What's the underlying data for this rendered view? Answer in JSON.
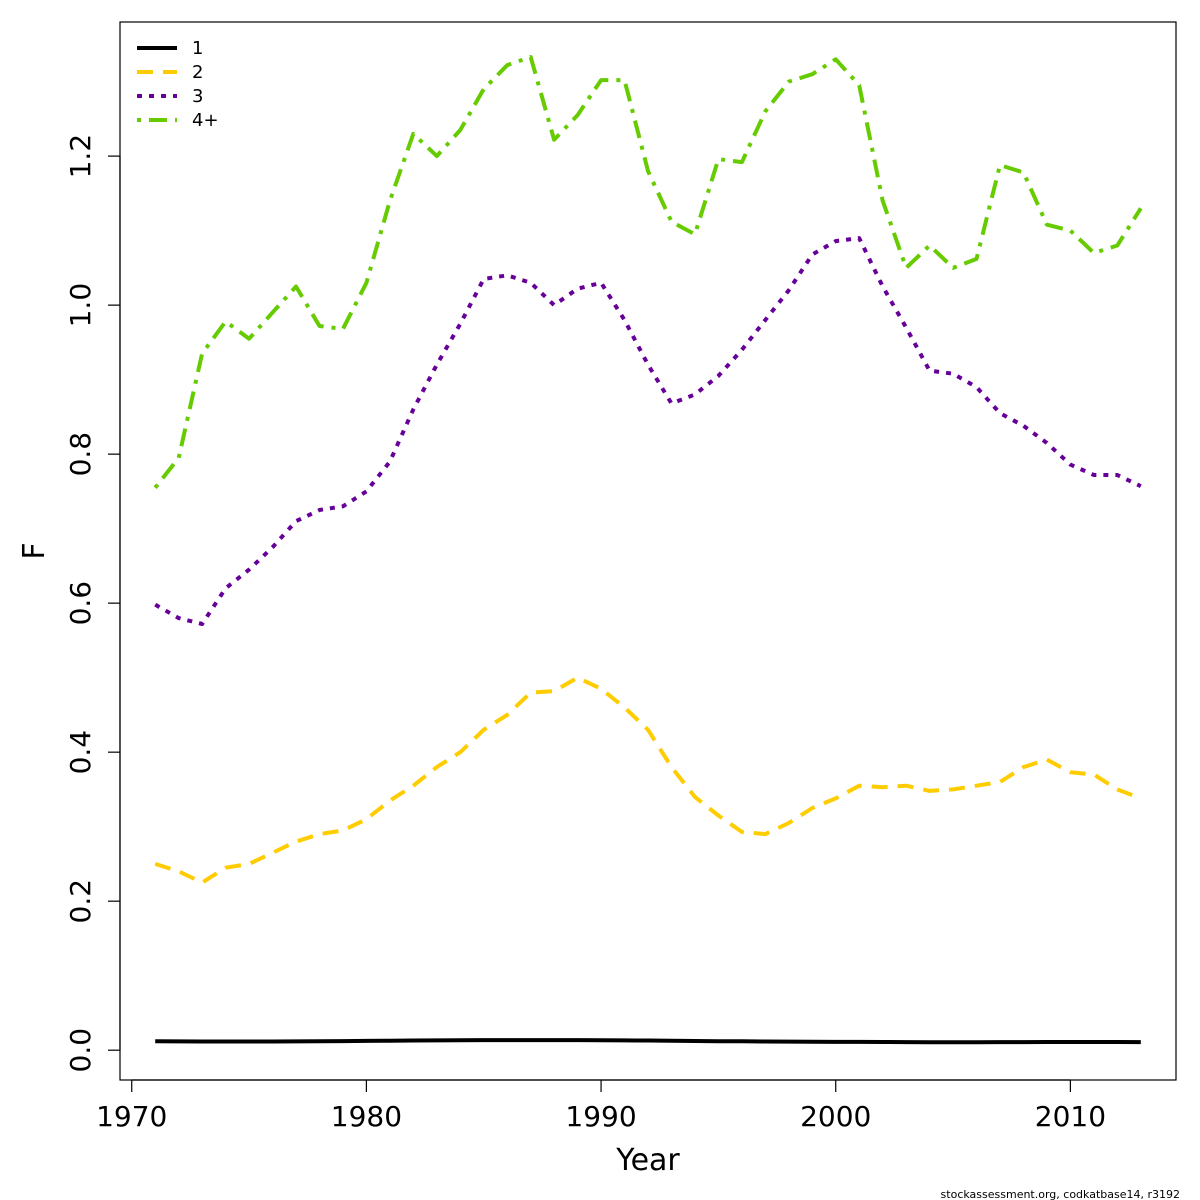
{
  "chart_data": {
    "type": "line",
    "xlabel": "Year",
    "ylabel": "F",
    "xlim": [
      1969.5,
      2014.5
    ],
    "ylim": [
      -0.04,
      1.38
    ],
    "x_ticks": [
      1970,
      1980,
      1990,
      2000,
      2010
    ],
    "y_ticks": [
      0.0,
      0.2,
      0.4,
      0.6,
      0.8,
      1.0,
      1.2
    ],
    "x_tick_labels": [
      "1970",
      "1980",
      "1990",
      "2000",
      "2010"
    ],
    "y_tick_labels": [
      "0.0",
      "0.2",
      "0.4",
      "0.6",
      "0.8",
      "1.0",
      "1.2"
    ],
    "grid": false,
    "legend_position": "top-left",
    "x": [
      1971,
      1972,
      1973,
      1974,
      1975,
      1976,
      1977,
      1978,
      1979,
      1980,
      1981,
      1982,
      1983,
      1984,
      1985,
      1986,
      1987,
      1988,
      1989,
      1990,
      1991,
      1992,
      1993,
      1994,
      1995,
      1996,
      1997,
      1998,
      1999,
      2000,
      2001,
      2002,
      2003,
      2004,
      2005,
      2006,
      2007,
      2008,
      2009,
      2010,
      2011,
      2012,
      2013
    ],
    "series": [
      {
        "name": "1",
        "color": "#000000",
        "dash": "solid",
        "values": [
          0.012,
          0.0118,
          0.0117,
          0.0117,
          0.0117,
          0.0117,
          0.0118,
          0.012,
          0.0122,
          0.0125,
          0.0128,
          0.013,
          0.0132,
          0.0134,
          0.0135,
          0.0136,
          0.0136,
          0.0136,
          0.0135,
          0.0134,
          0.0132,
          0.013,
          0.0127,
          0.0124,
          0.0121,
          0.0119,
          0.0117,
          0.0115,
          0.0113,
          0.0112,
          0.0111,
          0.011,
          0.0109,
          0.0108,
          0.0108,
          0.0108,
          0.0109,
          0.0109,
          0.011,
          0.011,
          0.011,
          0.011,
          0.0109
        ]
      },
      {
        "name": "2",
        "color": "#FFCC00",
        "dash": "dashed",
        "values": [
          0.25,
          0.24,
          0.225,
          0.245,
          0.25,
          0.265,
          0.28,
          0.29,
          0.295,
          0.31,
          0.335,
          0.355,
          0.38,
          0.4,
          0.43,
          0.45,
          0.48,
          0.482,
          0.5,
          0.485,
          0.46,
          0.43,
          0.38,
          0.34,
          0.315,
          0.293,
          0.29,
          0.305,
          0.325,
          0.338,
          0.355,
          0.353,
          0.355,
          0.348,
          0.35,
          0.355,
          0.36,
          0.38,
          0.39,
          0.373,
          0.37,
          0.35,
          0.338
        ]
      },
      {
        "name": "3",
        "color": "#660099",
        "dash": "dotted",
        "values": [
          0.598,
          0.58,
          0.572,
          0.62,
          0.645,
          0.675,
          0.71,
          0.725,
          0.73,
          0.75,
          0.79,
          0.86,
          0.92,
          0.975,
          1.035,
          1.04,
          1.03,
          1.0,
          1.022,
          1.03,
          0.98,
          0.92,
          0.868,
          0.88,
          0.905,
          0.94,
          0.98,
          1.02,
          1.068,
          1.086,
          1.09,
          1.025,
          0.97,
          0.912,
          0.908,
          0.89,
          0.855,
          0.838,
          0.815,
          0.786,
          0.772,
          0.772,
          0.757
        ]
      },
      {
        "name": "4+",
        "color": "#66CC00",
        "dash": "dashdot",
        "values": [
          0.755,
          0.795,
          0.935,
          0.978,
          0.955,
          0.99,
          1.025,
          0.972,
          0.968,
          1.03,
          1.14,
          1.23,
          1.2,
          1.235,
          1.29,
          1.322,
          1.333,
          1.222,
          1.255,
          1.302,
          1.302,
          1.18,
          1.112,
          1.095,
          1.196,
          1.192,
          1.26,
          1.3,
          1.31,
          1.33,
          1.295,
          1.14,
          1.05,
          1.08,
          1.05,
          1.062,
          1.188,
          1.178,
          1.108,
          1.1,
          1.07,
          1.08,
          1.13
        ]
      }
    ]
  },
  "credit": "stockassessment.org, codkatbase14, r3192"
}
